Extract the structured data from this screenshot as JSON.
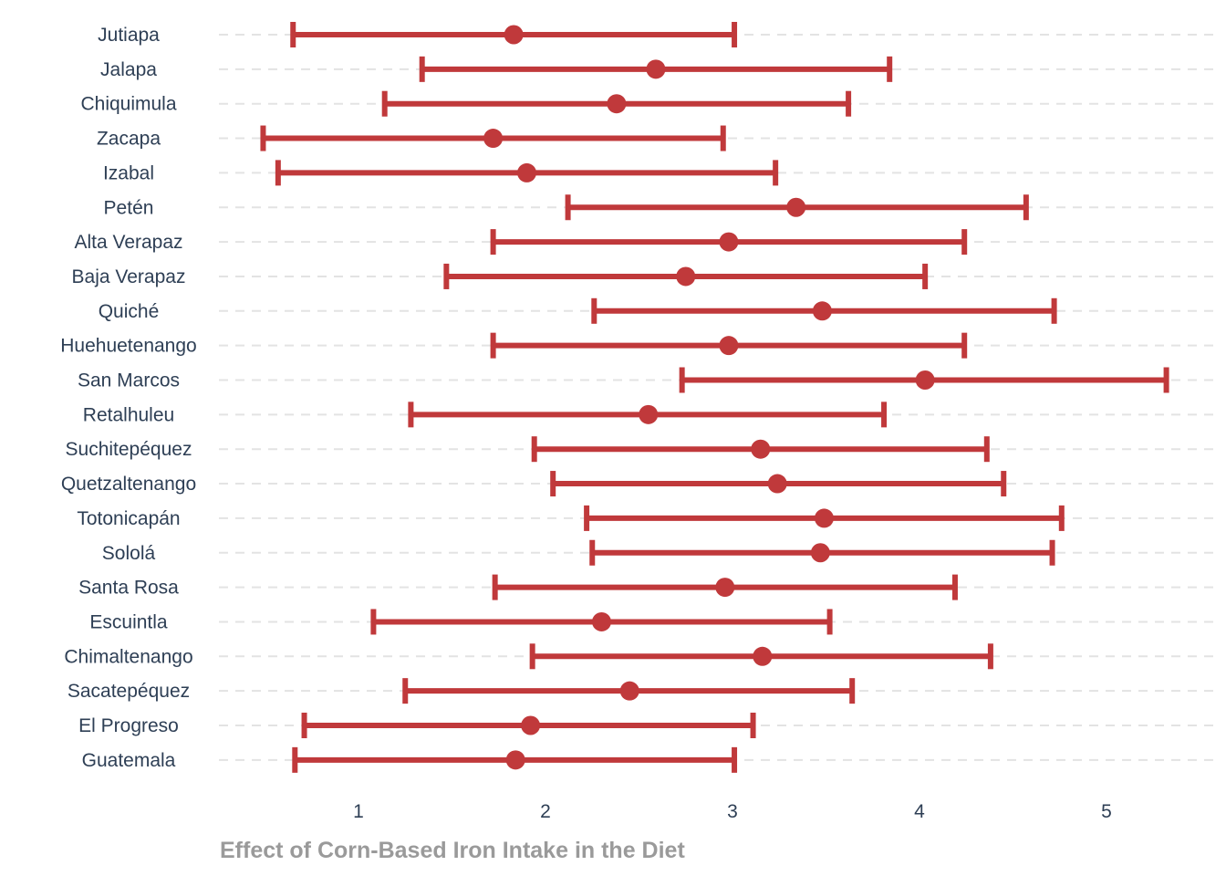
{
  "chart_data": {
    "type": "scatter",
    "subtype": "point-range",
    "title": "",
    "xlabel": "Effect of Corn-Based Iron Intake in the Diet",
    "ylabel": "",
    "xlim": [
      0.25,
      5.55
    ],
    "xticks": [
      1,
      2,
      3,
      4,
      5
    ],
    "grid": "horizontal dashed",
    "legend": "none",
    "colors": {
      "marker": "#c0393b",
      "grid": "#e3e3e3",
      "label": "#2e3f55",
      "axis_title": "#9a9a9a"
    },
    "categories": [
      "Jutiapa",
      "Jalapa",
      "Chiquimula",
      "Zacapa",
      "Izabal",
      "Petén",
      "Alta Verapaz",
      "Baja Verapaz",
      "Quiché",
      "Huehuetenango",
      "San Marcos",
      "Retalhuleu",
      "Suchitepéquez",
      "Quetzaltenango",
      "Totonicapán",
      "Sololá",
      "Santa Rosa",
      "Escuintla",
      "Chimaltenango",
      "Sacatepéquez",
      "El Progreso",
      "Guatemala"
    ],
    "estimate": [
      1.83,
      2.59,
      2.38,
      1.72,
      1.9,
      3.34,
      2.98,
      2.75,
      3.48,
      2.98,
      4.03,
      2.55,
      3.15,
      3.24,
      3.49,
      3.47,
      2.96,
      2.3,
      3.16,
      2.45,
      1.92,
      1.84
    ],
    "lower": [
      0.65,
      1.34,
      1.14,
      0.49,
      0.57,
      2.12,
      1.72,
      1.47,
      2.26,
      1.72,
      2.73,
      1.28,
      1.94,
      2.04,
      2.22,
      2.25,
      1.73,
      1.08,
      1.93,
      1.25,
      0.71,
      0.66
    ],
    "upper": [
      3.01,
      3.84,
      3.62,
      2.95,
      3.23,
      4.57,
      4.24,
      4.03,
      4.72,
      4.24,
      5.32,
      3.81,
      4.36,
      4.45,
      4.76,
      4.71,
      4.19,
      3.52,
      4.38,
      3.64,
      3.11,
      3.01
    ]
  }
}
